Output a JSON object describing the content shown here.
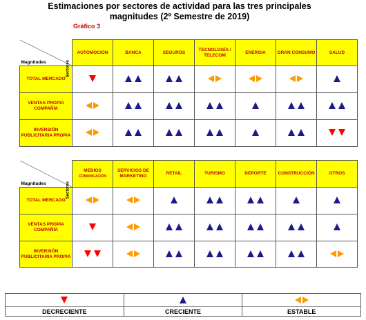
{
  "title": "Estimaciones por sectores de actividad para las tres principales magnitudes (2º Semestre de 2019)",
  "grafico": "Gráfico 3",
  "corner": {
    "magnitudes": "Magnitudes",
    "sectores": "Sectores"
  },
  "rows": [
    "TOTAL MERCADO",
    "VENTAS PROPIA COMPAÑÍA",
    "INVERSIÓN PUBLICITARIA PROPIA"
  ],
  "table1": {
    "headers": [
      "AUTOMOCION",
      "BANCA",
      "SEGUROS",
      "TECNOLOGÍA / TELECOM",
      "ENERGIA",
      "GRAN CONSUMO",
      "SALUD"
    ],
    "cells": [
      [
        "down1",
        "up2",
        "up2",
        "lr",
        "lr",
        "lr",
        "up1"
      ],
      [
        "lr",
        "up2",
        "up2",
        "up2",
        "up1",
        "up2",
        "up2"
      ],
      [
        "lr",
        "up2",
        "up2",
        "up2",
        "up1",
        "up2",
        "down2"
      ]
    ]
  },
  "table2": {
    "headers": [
      {
        "main": "MEDIOS",
        "sub": "COMUNICACIÓN"
      },
      {
        "main": "SERVICIOS DE MARKETING",
        "sub": ""
      },
      {
        "main": "RETAIL",
        "sub": ""
      },
      {
        "main": "TURISMO",
        "sub": ""
      },
      {
        "main": "DEPORTE",
        "sub": ""
      },
      {
        "main": "CONSTRUCCIÓN",
        "sub": ""
      },
      {
        "main": "OTROS",
        "sub": ""
      }
    ],
    "cells": [
      [
        "lr",
        "lr",
        "up1",
        "up2",
        "up2",
        "up1",
        "up1"
      ],
      [
        "down1",
        "lr",
        "up2",
        "up2",
        "up2",
        "up2",
        "up1"
      ],
      [
        "down2",
        "lr",
        "up2",
        "up2",
        "up2",
        "up2",
        "lr"
      ]
    ]
  },
  "legend": [
    {
      "icon": "down1",
      "label": "DECRECIENTE"
    },
    {
      "icon": "up1",
      "label": "CRECIENTE"
    },
    {
      "icon": "lr",
      "label": "ESTABLE"
    }
  ],
  "colors": {
    "header_bg": "#ffff00",
    "header_text": "#c00000",
    "up": "#1a1a8c",
    "down": "#ff0000",
    "stable": "#ff9900"
  }
}
